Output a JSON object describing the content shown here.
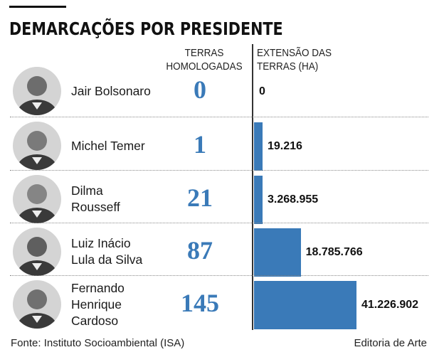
{
  "title": "DEMARCAÇÕES POR PRESIDENTE",
  "col_headers": {
    "terras": "TERRAS\nHOMOLOGADAS",
    "extensao": "EXTENSÃO DAS\nTERRAS (HA)"
  },
  "colors": {
    "accent": "#3a7ab8",
    "text": "#1a1a1a"
  },
  "chart_data": {
    "type": "bar",
    "orientation": "horizontal",
    "title": "DEMARCAÇÕES POR PRESIDENTE",
    "categories": [
      "Jair Bolsonaro",
      "Michel Temer",
      "Dilma Rousseff",
      "Luiz Inácio Lula da Silva",
      "Fernando Henrique Cardoso"
    ],
    "series": [
      {
        "name": "TERRAS HOMOLOGADAS",
        "values": [
          0,
          1,
          21,
          87,
          145
        ]
      },
      {
        "name": "EXTENSÃO DAS TERRAS (HA)",
        "values": [
          0,
          19216,
          3268955,
          18785766,
          41226902
        ]
      }
    ],
    "rows": [
      {
        "name": "Jair Bolsonaro",
        "terras": "0",
        "area": "0",
        "area_value": 0
      },
      {
        "name": "Michel Temer",
        "terras": "1",
        "area": "19.216",
        "area_value": 19216
      },
      {
        "name": "Dilma\nRousseff",
        "terras": "21",
        "area": "3.268.955",
        "area_value": 3268955
      },
      {
        "name": "Luiz Inácio\nLula da Silva",
        "terras": "87",
        "area": "18.785.766",
        "area_value": 18785766
      },
      {
        "name": "Fernando\nHenrique\nCardoso",
        "terras": "145",
        "area": "41.226.902",
        "area_value": 41226902
      }
    ]
  },
  "footer": {
    "source": "Fonte: Instituto Socioambiental (ISA)",
    "credit": "Editoria de Arte"
  }
}
